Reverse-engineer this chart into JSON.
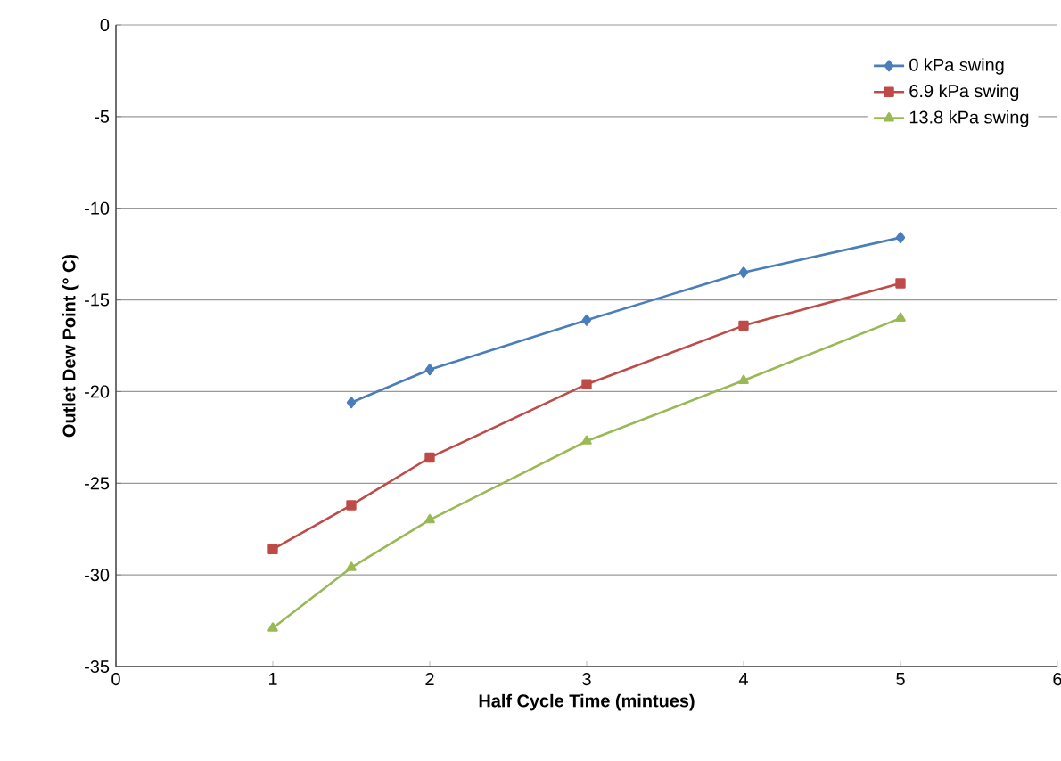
{
  "chart_data": {
    "type": "line",
    "xlabel": "Half Cycle Time (mintues)",
    "ylabel": "Outlet Dew Point (° C)",
    "xlim": [
      0,
      6
    ],
    "xticks": [
      0,
      1,
      2,
      3,
      4,
      5,
      6
    ],
    "ylim": [
      -35,
      0
    ],
    "yticks": [
      -35,
      -30,
      -25,
      -20,
      -15,
      -10,
      -5,
      0
    ],
    "grid": "y",
    "legend": "top right",
    "series": [
      {
        "name": "0 kPa swing",
        "color": "#4a7ebb",
        "marker": "diamond",
        "x": [
          1.5,
          2,
          3,
          4,
          5
        ],
        "values": [
          -20.6,
          -18.8,
          -16.1,
          -13.5,
          -11.6
        ]
      },
      {
        "name": "6.9 kPa swing",
        "color": "#be4b48",
        "marker": "square",
        "x": [
          1,
          1.5,
          2,
          3,
          4,
          5
        ],
        "values": [
          -28.6,
          -26.2,
          -23.6,
          -19.6,
          -16.4,
          -14.1
        ]
      },
      {
        "name": "13.8 kPa swing",
        "color": "#98b954",
        "marker": "triangle",
        "x": [
          1,
          1.5,
          2,
          3,
          4,
          5
        ],
        "values": [
          -32.9,
          -29.6,
          -27.0,
          -22.7,
          -19.4,
          -16.0
        ]
      }
    ]
  }
}
